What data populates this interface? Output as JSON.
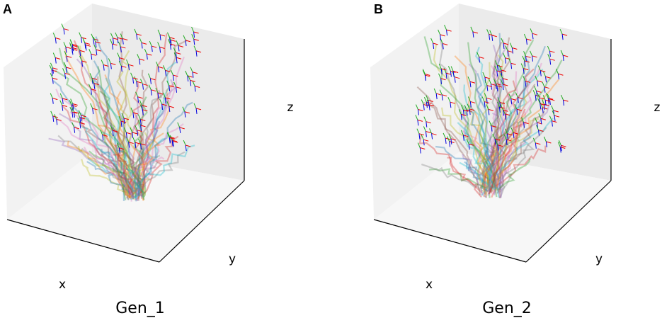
{
  "panels": [
    {
      "label": "A",
      "caption": "Gen_1",
      "axes": {
        "x": "x",
        "y": "y",
        "z": "z"
      }
    },
    {
      "label": "B",
      "caption": "Gen_2",
      "axes": {
        "x": "x",
        "y": "y",
        "z": "z"
      }
    }
  ]
}
